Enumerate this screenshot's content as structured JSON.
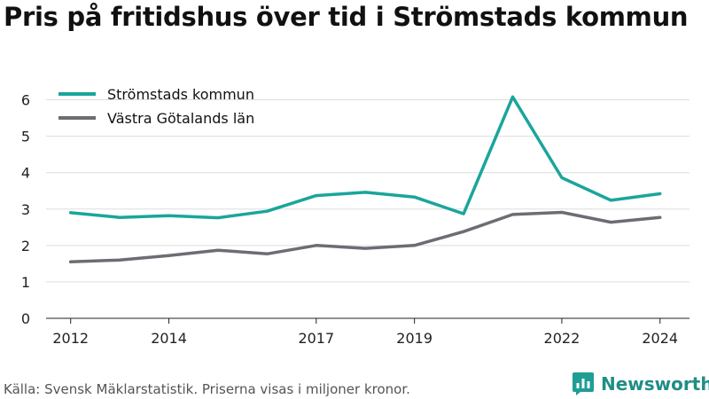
{
  "title": "Pris på fritidshus över tid i Strömstads kommun",
  "source": "Källa: Svensk Mäklarstatistik. Priserna visas i miljoner kronor.",
  "brand": {
    "name": "Newsworthy",
    "icon": "newsworthy-logo-icon",
    "color": "#1f9e94"
  },
  "chart_data": {
    "type": "line",
    "x": [
      2012,
      2013,
      2014,
      2015,
      2016,
      2017,
      2018,
      2019,
      2020,
      2021,
      2022,
      2023,
      2024
    ],
    "x_ticks": [
      2012,
      2014,
      2017,
      2019,
      2022,
      2024
    ],
    "y_ticks": [
      0,
      1,
      2,
      3,
      4,
      5,
      6
    ],
    "xlim": [
      2011.5,
      2024.6
    ],
    "ylim": [
      0,
      6.5
    ],
    "grid": true,
    "legend_position": "top-left",
    "series": [
      {
        "name": "Strömstads kommun",
        "color": "#1aa59b",
        "values": [
          2.9,
          2.77,
          2.82,
          2.76,
          2.94,
          3.37,
          3.46,
          3.33,
          2.87,
          6.08,
          3.86,
          3.24,
          3.42
        ]
      },
      {
        "name": "Västra Götalands län",
        "color": "#6e6c73",
        "values": [
          1.55,
          1.6,
          1.72,
          1.87,
          1.77,
          2.0,
          1.92,
          2.0,
          2.38,
          2.85,
          2.91,
          2.64,
          2.77
        ]
      }
    ]
  }
}
